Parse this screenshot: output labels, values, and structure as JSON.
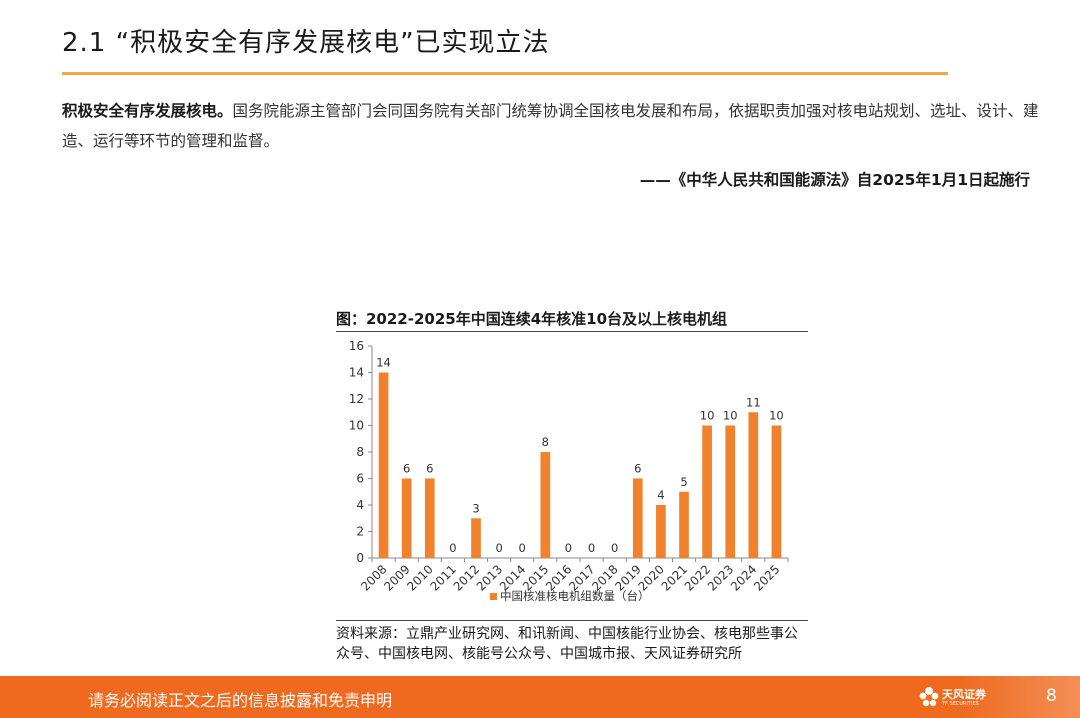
{
  "header": {
    "title": "2.1 “积极安全有序发展核电”已实现立法"
  },
  "body": {
    "lead": "积极安全有序发展核电。",
    "text": "国务院能源主管部门会同国务院有关部门统筹协调全国核电发展和布局，依据职责加强对核电站规划、选址、设计、建造、运行等环节的管理和监督。",
    "quote": "——《中华人民共和国能源法》自2025年1月1日起施行"
  },
  "chart": {
    "title": "图：2022-2025年中国连续4年核准10台及以上核电机组",
    "source": "资料来源：立鼎产业研究网、和讯新闻、中国核能行业协会、核电那些事公众号、中国核电网、核能号公众号、中国城市报、天风证券研究所"
  },
  "chart_data": {
    "type": "bar",
    "categories": [
      "2008",
      "2009",
      "2010",
      "2011",
      "2012",
      "2013",
      "2014",
      "2015",
      "2016",
      "2017",
      "2018",
      "2019",
      "2020",
      "2021",
      "2022",
      "2023",
      "2024",
      "2025"
    ],
    "series": [
      {
        "name": "中国核准核电机组数量（台）",
        "values": [
          14,
          6,
          6,
          0,
          3,
          0,
          0,
          8,
          0,
          0,
          0,
          6,
          4,
          5,
          10,
          10,
          11,
          10
        ]
      }
    ],
    "ylim": [
      0,
      16
    ],
    "yticks": [
      0,
      2,
      4,
      6,
      8,
      10,
      12,
      14,
      16
    ],
    "title": "图：2022-2025年中国连续4年核准10台及以上核电机组",
    "xlabel": "",
    "ylabel": "",
    "grid": false,
    "legend": "bottom",
    "color": "#f0822e"
  },
  "footer": {
    "disclaimer": "请务必阅读正文之后的信息披露和免责申明",
    "logo_text": "天风证券",
    "logo_sub": "TF SECURITIES",
    "page_number": "8"
  },
  "colors": {
    "accent": "#ef6a1f",
    "rule": "#f4a54a",
    "bar": "#f0822e"
  }
}
